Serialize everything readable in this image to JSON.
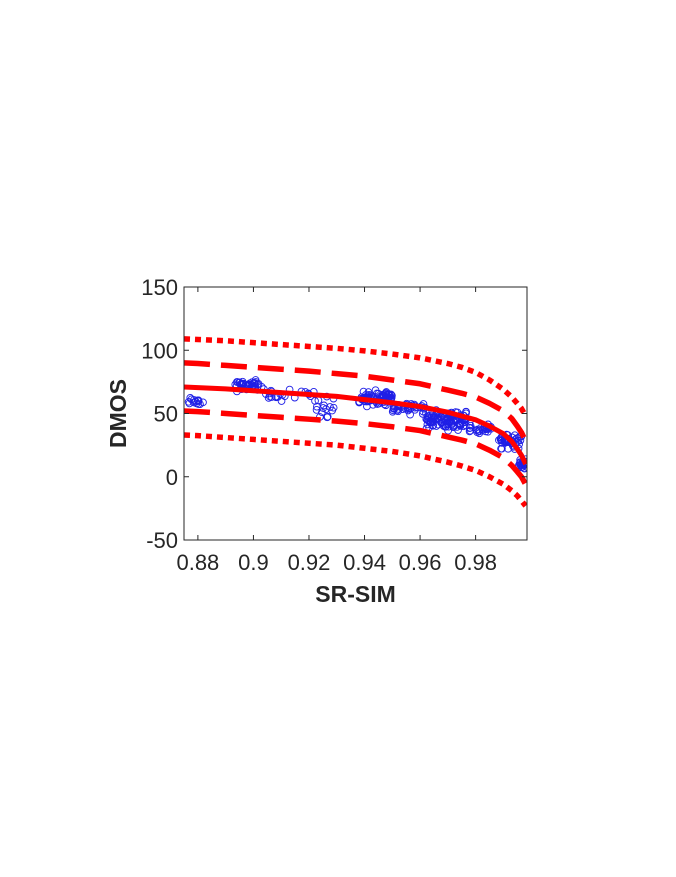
{
  "chart_data": {
    "type": "scatter",
    "title": "",
    "xlabel": "SR-SIM",
    "ylabel": "DMOS",
    "xlim": [
      0.875,
      0.9985
    ],
    "ylim": [
      -50,
      150
    ],
    "xticks": [
      0.88,
      0.9,
      0.92,
      0.94,
      0.96,
      0.98
    ],
    "xtick_labels": [
      "0.88",
      "0.9",
      "0.92",
      "0.94",
      "0.96",
      "0.98"
    ],
    "yticks": [
      -50,
      0,
      50,
      100,
      150
    ],
    "ytick_labels": [
      "-50",
      "0",
      "50",
      "100",
      "150"
    ],
    "grid": false,
    "legend": "none",
    "colors": {
      "points": "#1f1fe6",
      "fit": "#ff0000",
      "axes": "#262626"
    },
    "series": [
      {
        "kind": "scatter",
        "marker": "circle-open",
        "clusters": [
          {
            "x_range": [
              0.876,
              0.882
            ],
            "count": 14,
            "y_center": 59,
            "y_spread": 5
          },
          {
            "x_range": [
              0.893,
              0.904
            ],
            "count": 44,
            "y_center": 72,
            "y_spread": 6
          },
          {
            "x_range": [
              0.904,
              0.912
            ],
            "count": 14,
            "y_center": 64,
            "y_spread": 6
          },
          {
            "x_range": [
              0.912,
              0.922
            ],
            "count": 8,
            "y_center": 66,
            "y_spread": 5
          },
          {
            "x_range": [
              0.922,
              0.929
            ],
            "count": 16,
            "y_center": 55,
            "y_spread": 12
          },
          {
            "x_range": [
              0.938,
              0.95
            ],
            "count": 82,
            "y_center": 62,
            "y_spread": 8
          },
          {
            "x_range": [
              0.95,
              0.962
            ],
            "count": 40,
            "y_center": 55,
            "y_spread": 7
          },
          {
            "x_range": [
              0.962,
              0.977
            ],
            "count": 112,
            "y_center": 45,
            "y_spread": 10
          },
          {
            "x_range": [
              0.977,
              0.986
            ],
            "count": 28,
            "y_center": 38,
            "y_spread": 6
          },
          {
            "x_range": [
              0.988,
              0.9965
            ],
            "count": 44,
            "y_center": 28,
            "y_spread": 8
          },
          {
            "x_range": [
              0.9955,
              0.9985
            ],
            "count": 24,
            "y_center": 10,
            "y_spread": 5
          }
        ]
      },
      {
        "kind": "line",
        "style": "solid",
        "x": [
          0.875,
          0.88,
          0.89,
          0.9,
          0.91,
          0.92,
          0.93,
          0.94,
          0.95,
          0.96,
          0.97,
          0.975,
          0.98,
          0.985,
          0.99,
          0.993,
          0.995,
          0.9965,
          0.998
        ],
        "y": [
          71,
          70.5,
          69.5,
          68,
          66.5,
          65,
          63.5,
          61,
          58.5,
          55.5,
          51,
          48,
          45,
          40,
          34,
          28,
          22,
          17,
          10
        ]
      },
      {
        "kind": "line",
        "style": "dashed",
        "x": [
          0.875,
          0.88,
          0.89,
          0.9,
          0.91,
          0.92,
          0.93,
          0.94,
          0.95,
          0.96,
          0.97,
          0.975,
          0.98,
          0.985,
          0.99,
          0.993,
          0.995,
          0.9965,
          0.998
        ],
        "y": [
          90,
          89.5,
          88,
          86.5,
          85,
          83.5,
          81.5,
          79.5,
          76.5,
          73.5,
          68.5,
          66,
          63,
          58,
          52,
          46,
          40,
          35,
          28
        ]
      },
      {
        "kind": "line",
        "style": "dashed",
        "x": [
          0.875,
          0.88,
          0.89,
          0.9,
          0.91,
          0.92,
          0.93,
          0.94,
          0.95,
          0.96,
          0.97,
          0.975,
          0.98,
          0.985,
          0.99,
          0.993,
          0.995,
          0.9965,
          0.998
        ],
        "y": [
          52,
          51.5,
          50,
          48.5,
          47,
          45.5,
          44,
          42,
          39.5,
          36.5,
          31.5,
          29,
          26,
          21,
          15,
          9,
          4,
          0,
          -6
        ]
      },
      {
        "kind": "line",
        "style": "dotted",
        "x": [
          0.875,
          0.88,
          0.89,
          0.9,
          0.91,
          0.92,
          0.93,
          0.94,
          0.95,
          0.96,
          0.97,
          0.975,
          0.98,
          0.985,
          0.99,
          0.993,
          0.995,
          0.9965,
          0.998
        ],
        "y": [
          109,
          108.5,
          107.5,
          106,
          104.5,
          103,
          101.5,
          99.5,
          97,
          94,
          89.5,
          86.5,
          82.5,
          76.5,
          69,
          63,
          58,
          54,
          48
        ]
      },
      {
        "kind": "line",
        "style": "dotted",
        "x": [
          0.875,
          0.88,
          0.89,
          0.9,
          0.91,
          0.92,
          0.93,
          0.94,
          0.95,
          0.96,
          0.97,
          0.975,
          0.98,
          0.985,
          0.99,
          0.993,
          0.995,
          0.9965,
          0.998
        ],
        "y": [
          33,
          32.5,
          31,
          29.5,
          28,
          26.5,
          25,
          22.5,
          20,
          16.5,
          11.5,
          8.5,
          5,
          0,
          -6,
          -11,
          -15,
          -19,
          -23
        ]
      }
    ]
  }
}
